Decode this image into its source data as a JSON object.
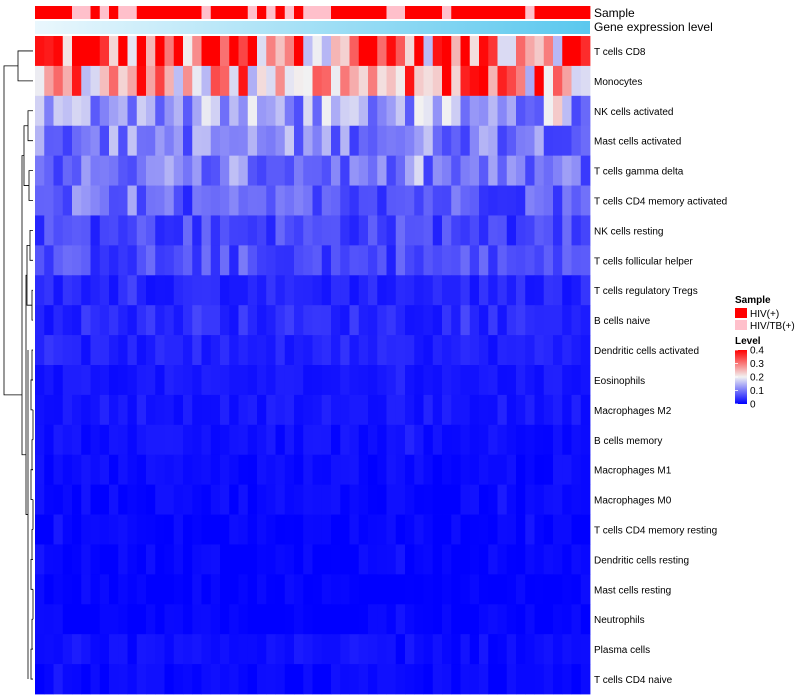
{
  "chart_data": {
    "type": "heatmap",
    "annotation_labels": {
      "sample": "Sample",
      "expression": "Gene expression level"
    },
    "rows": [
      "T cells CD8",
      "Monocytes",
      "NK cells activated",
      "Mast cells activated",
      "T cells gamma delta",
      "T cells CD4 memory activated",
      "NK cells resting",
      "T cells follicular helper",
      "T cells regulatory  Tregs",
      "B cells naive",
      "Dendritic cells activated",
      "Eosinophils",
      "Macrophages M2",
      "B cells memory",
      "Macrophages M1",
      "Macrophages M0",
      "T cells CD4 memory resting",
      "Dendritic cells resting",
      "Mast cells resting",
      "Neutrophils",
      "Plasma cells",
      "T cells CD4 naive"
    ],
    "sample_groups": [
      "HIV(+)",
      "HIV(+)",
      "HIV(+)",
      "HIV(+)",
      "HIV/TB(+)",
      "HIV/TB(+)",
      "HIV(+)",
      "HIV/TB(+)",
      "HIV(+)",
      "HIV/TB(+)",
      "HIV/TB(+)",
      "HIV(+)",
      "HIV(+)",
      "HIV(+)",
      "HIV(+)",
      "HIV(+)",
      "HIV(+)",
      "HIV(+)",
      "HIV/TB(+)",
      "HIV(+)",
      "HIV(+)",
      "HIV(+)",
      "HIV(+)",
      "HIV/TB(+)",
      "HIV(+)",
      "HIV/TB(+)",
      "HIV(+)",
      "HIV/TB(+)",
      "HIV(+)",
      "HIV/TB(+)",
      "HIV/TB(+)",
      "HIV/TB(+)",
      "HIV(+)",
      "HIV(+)",
      "HIV(+)",
      "HIV(+)",
      "HIV(+)",
      "HIV(+)",
      "HIV/TB(+)",
      "HIV/TB(+)",
      "HIV(+)",
      "HIV(+)",
      "HIV(+)",
      "HIV(+)",
      "HIV/TB(+)",
      "HIV(+)",
      "HIV(+)",
      "HIV(+)",
      "HIV(+)",
      "HIV(+)",
      "HIV(+)",
      "HIV(+)",
      "HIV(+)",
      "HIV/TB(+)",
      "HIV(+)",
      "HIV(+)",
      "HIV(+)",
      "HIV(+)",
      "HIV(+)",
      "HIV(+)"
    ],
    "n_columns": 60,
    "row_means": [
      0.33,
      0.26,
      0.13,
      0.11,
      0.09,
      0.075,
      0.06,
      0.06,
      0.03,
      0.035,
      0.025,
      0.018,
      0.018,
      0.013,
      0.008,
      0.008,
      0.003,
      0.003,
      0.001,
      0.0,
      0.01,
      0.004
    ],
    "legend": {
      "sample_title": "Sample",
      "sample_entries": [
        {
          "label": "HIV(+)",
          "color": "#ff0000"
        },
        {
          "label": "HIV/TB(+)",
          "color": "#ffc0cb"
        }
      ],
      "level_title": "Level",
      "level_ticks": [
        "0.4",
        "0.3",
        "0.2",
        "0.1",
        "0"
      ],
      "level_range": [
        0,
        0.4
      ],
      "level_colors": {
        "low": "#0000ff",
        "mid": "#f2f2f2",
        "high": "#ff0000"
      }
    },
    "expression_gradient": [
      "#eaf7fd",
      "#5bc8ee"
    ]
  }
}
